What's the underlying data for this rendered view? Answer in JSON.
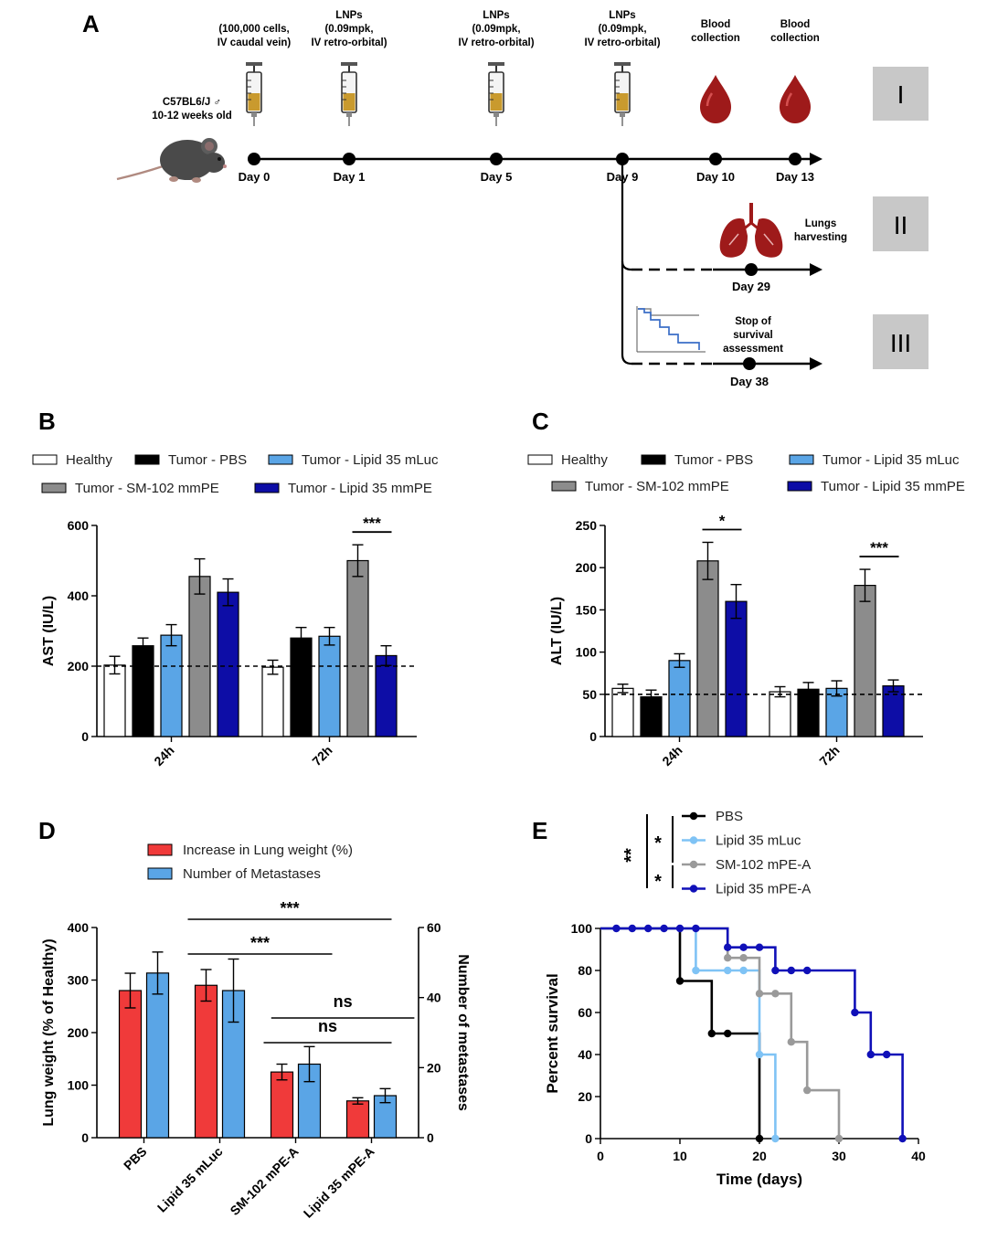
{
  "panel_a": {
    "letter": "A",
    "mouse_label": [
      "C57BL6/J ♂",
      "10-12 weeks old"
    ],
    "events": [
      {
        "day": "Day 0",
        "lines": [
          "(100,000 cells,",
          "IV caudal vein)"
        ],
        "kind": "syringe"
      },
      {
        "day": "Day 1",
        "lines": [
          "LNPs",
          "(0.09mpk,",
          "IV retro-orbital)"
        ],
        "kind": "syringe"
      },
      {
        "day": "Day 5",
        "lines": [
          "LNPs",
          "(0.09mpk,",
          "IV retro-orbital)"
        ],
        "kind": "syringe"
      },
      {
        "day": "Day 9",
        "lines": [
          "LNPs",
          "(0.09mpk,",
          "IV retro-orbital)"
        ],
        "kind": "syringe"
      },
      {
        "day": "Day 10",
        "lines": [
          "Blood",
          "collection"
        ],
        "kind": "blood"
      },
      {
        "day": "Day 13",
        "lines": [
          "Blood",
          "collection"
        ],
        "kind": "blood"
      }
    ],
    "branch_ii": {
      "label": [
        "Lungs",
        "harvesting"
      ],
      "day": "Day 29"
    },
    "branch_iii": {
      "label": [
        "Stop of",
        "survival",
        "assessment"
      ],
      "day": "Day 38"
    },
    "arms": [
      "I",
      "II",
      "III"
    ]
  },
  "legend_bc": [
    "Healthy",
    "Tumor - PBS",
    "Tumor - Lipid 35 mLuc",
    "Tumor - SM-102 mmPE",
    "Tumor - Lipid 35 mmPE"
  ],
  "chart_data": [
    {
      "panel": "B",
      "type": "bar",
      "ylabel": "AST (IU/L)",
      "ylim": [
        0,
        600
      ],
      "yticks": [
        "0",
        "200",
        "400",
        "600"
      ],
      "categories": [
        "24h",
        "72h"
      ],
      "reference_line": 200,
      "series": [
        {
          "name": "Healthy",
          "color": "#ffffff",
          "values": [
            203,
            197
          ],
          "errors": [
            25,
            20
          ]
        },
        {
          "name": "Tumor - PBS",
          "color": "#000000",
          "values": [
            258,
            280
          ],
          "errors": [
            22,
            30
          ]
        },
        {
          "name": "Tumor - Lipid 35 mLuc",
          "color": "#5aa5e6",
          "values": [
            288,
            285
          ],
          "errors": [
            30,
            25
          ]
        },
        {
          "name": "Tumor - SM-102 mmPE",
          "color": "#8c8c8c",
          "values": [
            455,
            500
          ],
          "errors": [
            50,
            45
          ]
        },
        {
          "name": "Tumor - Lipid 35 mmPE",
          "color": "#0d0da6",
          "values": [
            410,
            230
          ],
          "errors": [
            38,
            28
          ]
        }
      ],
      "significance": [
        {
          "label": "***",
          "category": "72h",
          "from": 3,
          "to": 4
        }
      ]
    },
    {
      "panel": "C",
      "type": "bar",
      "ylabel": "ALT (IU/L)",
      "ylim": [
        0,
        250
      ],
      "yticks": [
        "0",
        "50",
        "100",
        "150",
        "200",
        "250"
      ],
      "categories": [
        "24h",
        "72h"
      ],
      "reference_line": 50,
      "series": [
        {
          "name": "Healthy",
          "color": "#ffffff",
          "values": [
            57,
            53
          ],
          "errors": [
            5,
            6
          ]
        },
        {
          "name": "Tumor - PBS",
          "color": "#000000",
          "values": [
            47,
            56
          ],
          "errors": [
            8,
            8
          ]
        },
        {
          "name": "Tumor - Lipid 35 mLuc",
          "color": "#5aa5e6",
          "values": [
            90,
            57
          ],
          "errors": [
            8,
            9
          ]
        },
        {
          "name": "Tumor - SM-102 mmPE",
          "color": "#8c8c8c",
          "values": [
            208,
            179
          ],
          "errors": [
            22,
            19
          ]
        },
        {
          "name": "Tumor - Lipid 35 mmPE",
          "color": "#0d0da6",
          "values": [
            160,
            60
          ],
          "errors": [
            20,
            7
          ]
        }
      ],
      "significance": [
        {
          "label": "*",
          "category": "24h",
          "from": 3,
          "to": 4
        },
        {
          "label": "***",
          "category": "72h",
          "from": 3,
          "to": 4
        }
      ]
    },
    {
      "panel": "D",
      "type": "bar",
      "ylabel": "Lung weight (% of Healthy)",
      "ylabel_right": "Number of metastases",
      "ylim": [
        0,
        400
      ],
      "ylim_right": [
        0,
        60
      ],
      "yticks": [
        "0",
        "100",
        "200",
        "300",
        "400"
      ],
      "yticks_right": [
        "0",
        "20",
        "40",
        "60"
      ],
      "categories": [
        "PBS",
        "Lipid 35 mLuc",
        "SM-102 mPE-A",
        "Lipid 35 mPE-A"
      ],
      "series": [
        {
          "name": "Increase in Lung weight (%)",
          "color": "#f03a3a",
          "axis": "left",
          "values": [
            280,
            290,
            125,
            70
          ],
          "errors": [
            33,
            30,
            15,
            6
          ]
        },
        {
          "name": "Number of Metastases",
          "color": "#5aa5e6",
          "axis": "right",
          "values": [
            47,
            42,
            21,
            12
          ],
          "errors": [
            6,
            9,
            5,
            2
          ]
        }
      ],
      "significance": [
        {
          "label": "***",
          "from": 1,
          "to": 3
        },
        {
          "label": "***",
          "from": 1,
          "to": 2
        },
        {
          "label": "ns",
          "from": 2,
          "to": 3
        },
        {
          "label": "ns",
          "from": 2.1,
          "to": 3.3
        }
      ]
    },
    {
      "panel": "E",
      "type": "line",
      "step": true,
      "xlabel": "Time (days)",
      "ylabel": "Percent survival",
      "xlim": [
        0,
        40
      ],
      "ylim": [
        0,
        100
      ],
      "xticks": [
        "0",
        "10",
        "20",
        "30",
        "40"
      ],
      "yticks": [
        "0",
        "20",
        "40",
        "60",
        "80",
        "100"
      ],
      "series": [
        {
          "name": "PBS",
          "color": "#000000",
          "x": [
            0,
            10,
            10,
            14,
            14,
            20,
            20
          ],
          "y": [
            100,
            100,
            75,
            75,
            50,
            50,
            0
          ],
          "markers": [
            [
              10,
              75
            ],
            [
              14,
              50
            ],
            [
              16,
              50
            ],
            [
              20,
              0
            ]
          ]
        },
        {
          "name": "Lipid 35 mLuc",
          "color": "#7fc3f5",
          "x": [
            0,
            12,
            12,
            20,
            20,
            22,
            22
          ],
          "y": [
            100,
            100,
            80,
            80,
            40,
            40,
            0
          ],
          "markers": [
            [
              12,
              80
            ],
            [
              16,
              80
            ],
            [
              18,
              80
            ],
            [
              20,
              40
            ],
            [
              22,
              0
            ]
          ]
        },
        {
          "name": "SM-102 mPE-A",
          "color": "#9a9a9a",
          "x": [
            0,
            16,
            16,
            20,
            20,
            24,
            24,
            26,
            26,
            30,
            30
          ],
          "y": [
            100,
            100,
            86,
            86,
            69,
            69,
            46,
            46,
            23,
            23,
            0
          ],
          "markers": [
            [
              16,
              86
            ],
            [
              18,
              86
            ],
            [
              20,
              69
            ],
            [
              22,
              69
            ],
            [
              24,
              46
            ],
            [
              26,
              23
            ],
            [
              30,
              0
            ]
          ]
        },
        {
          "name": "Lipid 35 mPE-A",
          "color": "#1010b8",
          "x": [
            0,
            16,
            16,
            22,
            22,
            32,
            32,
            34,
            34,
            38,
            38
          ],
          "y": [
            100,
            100,
            91,
            91,
            80,
            80,
            60,
            60,
            40,
            40,
            0
          ],
          "markers": [
            [
              2,
              100
            ],
            [
              4,
              100
            ],
            [
              6,
              100
            ],
            [
              8,
              100
            ],
            [
              10,
              100
            ],
            [
              12,
              100
            ],
            [
              16,
              91
            ],
            [
              18,
              91
            ],
            [
              20,
              91
            ],
            [
              22,
              80
            ],
            [
              24,
              80
            ],
            [
              26,
              80
            ],
            [
              32,
              60
            ],
            [
              34,
              40
            ],
            [
              36,
              40
            ],
            [
              38,
              0
            ]
          ]
        }
      ],
      "significance": [
        "**",
        "*",
        "*"
      ]
    }
  ]
}
